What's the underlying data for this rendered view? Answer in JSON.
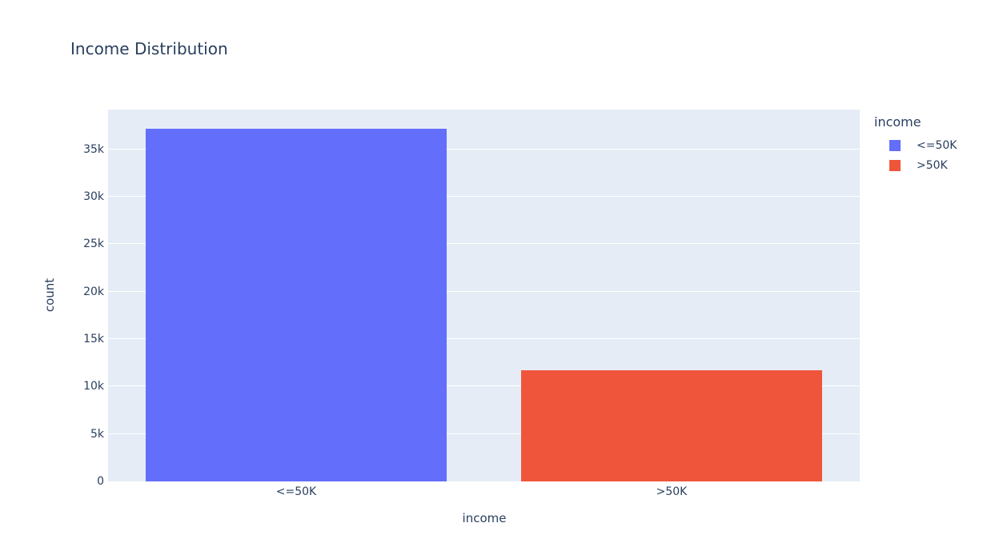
{
  "chart": {
    "title": "Income Distribution"
  },
  "chart_data": {
    "type": "bar",
    "title": "Income Distribution",
    "xlabel": "income",
    "ylabel": "count",
    "categories": [
      "<=50K",
      ">50K"
    ],
    "values": [
      37155,
      11687
    ],
    "bar_colors": [
      "#636EFA",
      "#EF553B"
    ],
    "ylim": [
      0,
      39200
    ],
    "yticks": [
      0,
      5000,
      10000,
      15000,
      20000,
      25000,
      30000,
      35000
    ],
    "ytick_labels": [
      "0",
      "5k",
      "10k",
      "15k",
      "20k",
      "25k",
      "30k",
      "35k"
    ],
    "grid": true,
    "plot_bgcolor": "#E5ECF6",
    "gridline_color": "#FFFFFF",
    "text_color": "#2A3F5F",
    "legend": {
      "title": "income",
      "position": "right",
      "entries": [
        {
          "label": "<=50K",
          "color": "#636EFA"
        },
        {
          "label": ">50K",
          "color": "#EF553B"
        }
      ]
    }
  }
}
